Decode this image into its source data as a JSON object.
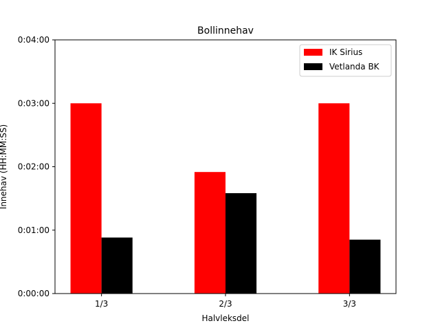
{
  "chart_data": {
    "type": "bar",
    "title": "Bollinnehav",
    "xlabel": "Halvleksdel",
    "ylabel": "Innehav (HH:MM:SS)",
    "categories": [
      "1/3",
      "2/3",
      "3/3"
    ],
    "series": [
      {
        "name": "IK Sirius",
        "color": "#ff0000",
        "values": [
          180,
          115,
          180
        ]
      },
      {
        "name": "Vetlanda BK",
        "color": "#000000",
        "values": [
          53,
          95,
          51
        ]
      }
    ],
    "yticks": [
      0,
      60,
      120,
      180,
      240
    ],
    "ytick_labels": [
      "0:00:00",
      "0:01:00",
      "0:02:00",
      "0:03:00",
      "0:04:00"
    ],
    "ylim": [
      0,
      240
    ],
    "grid": false,
    "legend_position": "top-right"
  }
}
